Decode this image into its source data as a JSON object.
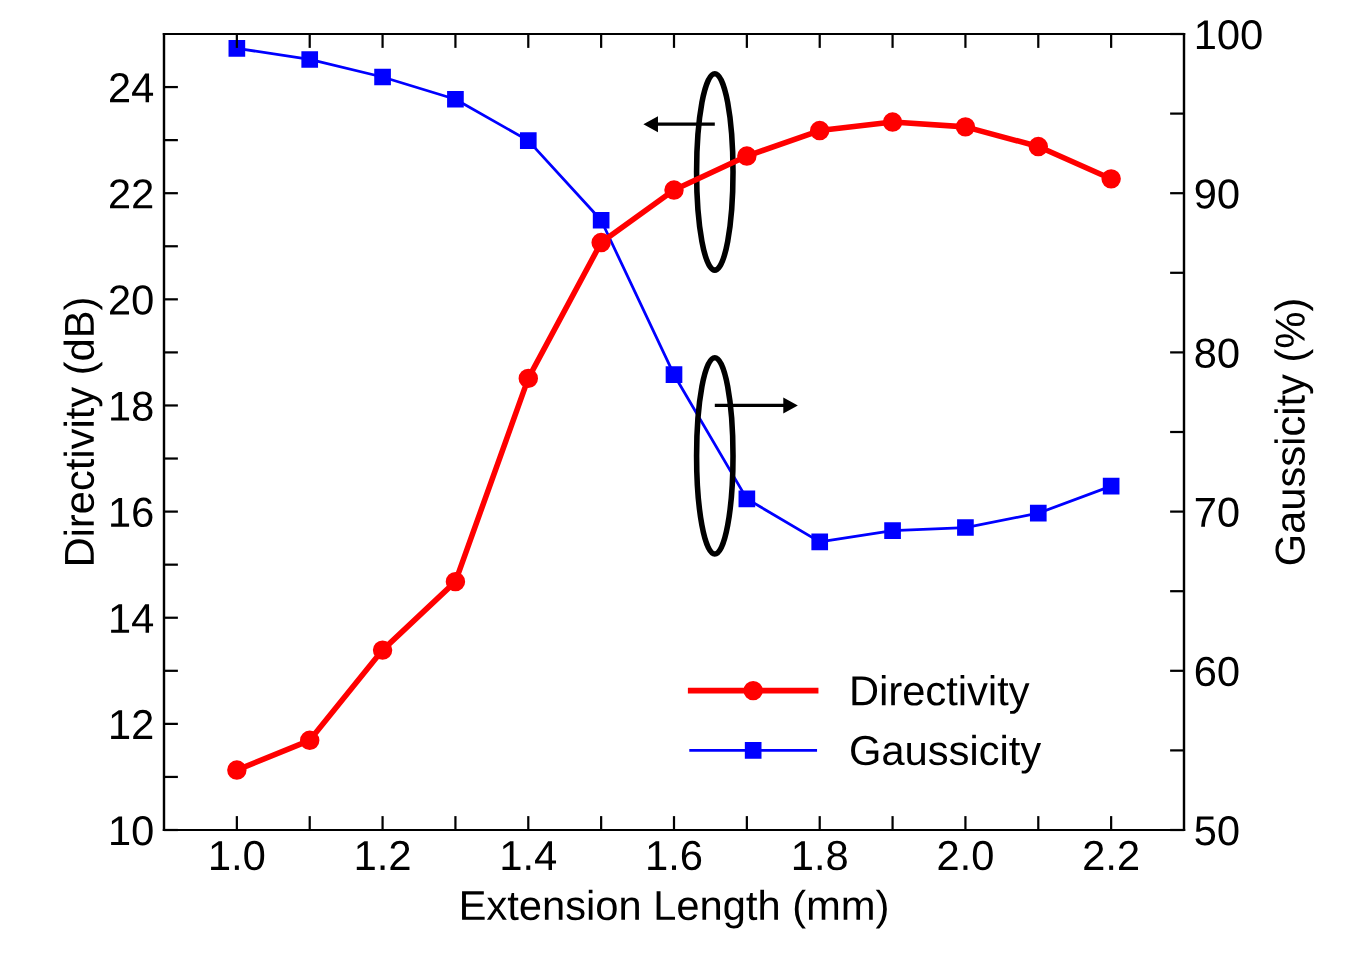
{
  "chart_data": {
    "type": "line",
    "xlabel": "Extension Length (mm)",
    "ylabel": "Directivity (dB)",
    "y2label": "Gaussicity (%)",
    "x": [
      1.0,
      1.1,
      1.2,
      1.3,
      1.4,
      1.5,
      1.6,
      1.7,
      1.8,
      1.9,
      2.0,
      2.1,
      2.2
    ],
    "series": [
      {
        "name": "Directivity",
        "color": "#ff0000",
        "marker": "circle",
        "values": [
          11.13,
          11.69,
          13.39,
          14.68,
          18.51,
          21.07,
          22.06,
          22.7,
          23.18,
          23.34,
          23.25,
          22.88,
          22.27
        ]
      },
      {
        "name": "Gaussicity",
        "color": "#0000ff",
        "marker": "square",
        "axis": "y2",
        "values": [
          99.1,
          98.4,
          97.3,
          95.9,
          93.3,
          88.3,
          78.6,
          70.8,
          68.1,
          68.8,
          69.0,
          69.9,
          71.6
        ]
      }
    ],
    "xlim": [
      0.9,
      2.3
    ],
    "xticks": [
      {
        "value": 1.0,
        "label": "1.0"
      },
      {
        "value": 1.1,
        "label": null
      },
      {
        "value": 1.2,
        "label": "1.2"
      },
      {
        "value": 1.3,
        "label": null
      },
      {
        "value": 1.4,
        "label": "1.4"
      },
      {
        "value": 1.5,
        "label": null
      },
      {
        "value": 1.6,
        "label": "1.6"
      },
      {
        "value": 1.7,
        "label": null
      },
      {
        "value": 1.8,
        "label": "1.8"
      },
      {
        "value": 1.9,
        "label": null
      },
      {
        "value": 2.0,
        "label": "2.0"
      },
      {
        "value": 2.1,
        "label": null
      },
      {
        "value": 2.2,
        "label": "2.2"
      }
    ],
    "ylim": [
      10,
      25
    ],
    "yticks": [
      10,
      {
        "value": 11,
        "label": null
      },
      12,
      {
        "value": 13,
        "label": null
      },
      14,
      {
        "value": 15,
        "label": null
      },
      16,
      {
        "value": 17,
        "label": null
      },
      18,
      {
        "value": 19,
        "label": null
      },
      20,
      {
        "value": 21,
        "label": null
      },
      22,
      {
        "value": 23,
        "label": null
      },
      24
    ],
    "y2lim": [
      50,
      100
    ],
    "y2ticks": [
      50,
      {
        "value": 55,
        "label": null
      },
      60,
      {
        "value": 65,
        "label": null
      },
      70,
      {
        "value": 75,
        "label": null
      },
      80,
      {
        "value": 85,
        "label": null
      },
      90,
      {
        "value": 95,
        "label": null
      },
      100
    ],
    "grid": false,
    "legend": "bottom right",
    "line_style": "solid"
  }
}
